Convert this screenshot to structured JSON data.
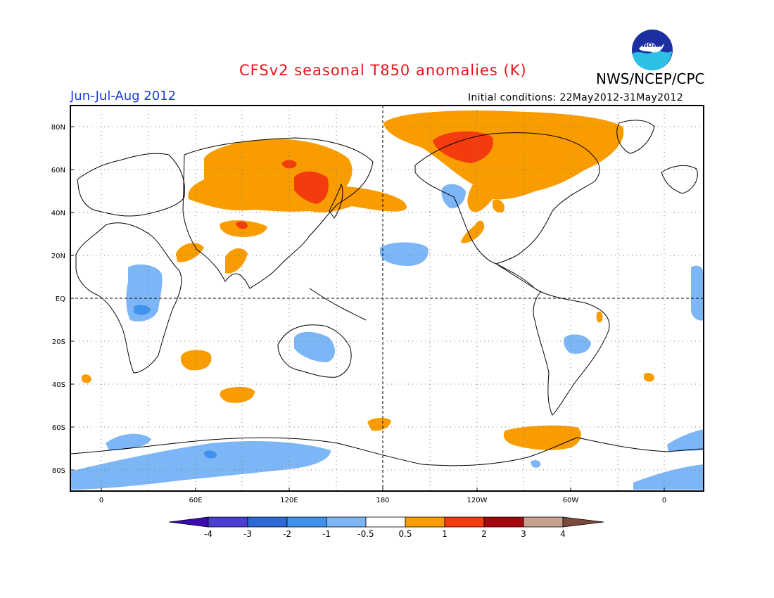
{
  "header": {
    "title": "CFSv2 seasonal T850 anomalies (K)",
    "organization": "NWS/NCEP/CPC",
    "period": "Jun-Jul-Aug 2012",
    "initial_conditions": "Initial conditions: 22May2012-31May2012",
    "logo_text": "NOAA"
  },
  "map": {
    "lat_labels": [
      "80N",
      "60N",
      "40N",
      "20N",
      "EQ",
      "20S",
      "40S",
      "60S",
      "80S"
    ],
    "lon_labels": [
      "0",
      "60E",
      "120E",
      "180",
      "120W",
      "60W",
      "0"
    ],
    "colors": {
      "warm_0_5_1": "#f99c00",
      "warm_1_2": "#f23c0d",
      "cool_m1_m0_5": "#7cb6f6",
      "cool_m2_m1": "#4191ef",
      "land_outline": "#000000"
    }
  },
  "colorbar": {
    "labels": [
      "-4",
      "-3",
      "-2",
      "-1",
      "-0.5",
      "0.5",
      "1",
      "2",
      "3",
      "4"
    ],
    "colors": [
      "#3a0bb0",
      "#4a3fd0",
      "#2d69d6",
      "#4191ef",
      "#7cb6f6",
      "#ffffff",
      "#f99c00",
      "#f23c0d",
      "#a4080e",
      "#c8a08e",
      "#7c4a3a"
    ]
  }
}
